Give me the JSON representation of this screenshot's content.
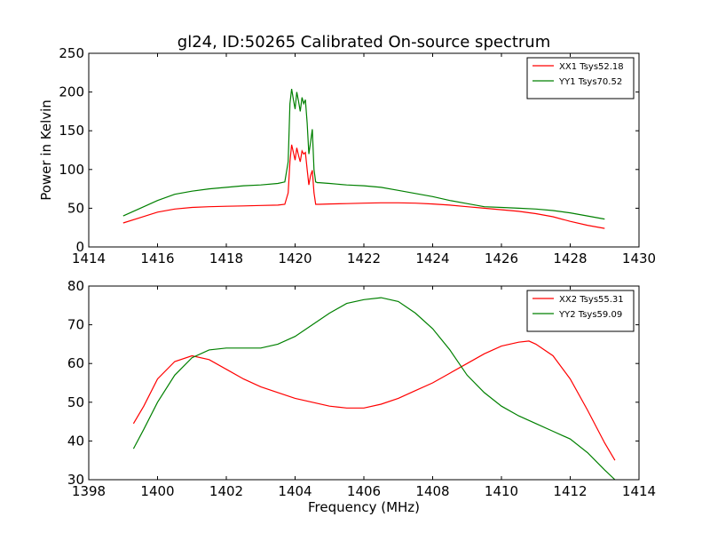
{
  "chart_data": [
    {
      "type": "line",
      "title": "gl24, ID:50265 Calibrated On-source spectrum",
      "xlabel": "",
      "ylabel": "Power in Kelvin",
      "xlim": [
        1414,
        1430
      ],
      "ylim": [
        0,
        250
      ],
      "xticks": [
        "1414",
        "1416",
        "1418",
        "1420",
        "1422",
        "1424",
        "1426",
        "1428",
        "1430"
      ],
      "yticks": [
        "0",
        "50",
        "100",
        "150",
        "200",
        "250"
      ],
      "legend_position": "top-right",
      "grid": false,
      "series": [
        {
          "name": "XX1 Tsys52.18",
          "color": "#ff0000",
          "x": [
            1415.0,
            1415.5,
            1416.0,
            1416.5,
            1417.0,
            1417.5,
            1418.0,
            1418.5,
            1419.0,
            1419.5,
            1419.7,
            1419.8,
            1419.85,
            1419.9,
            1419.95,
            1420.0,
            1420.05,
            1420.1,
            1420.15,
            1420.2,
            1420.25,
            1420.3,
            1420.35,
            1420.4,
            1420.45,
            1420.5,
            1420.55,
            1420.6,
            1420.65,
            1420.7,
            1421.0,
            1421.5,
            1422.0,
            1422.5,
            1423.0,
            1423.5,
            1424.0,
            1424.5,
            1425.0,
            1425.5,
            1426.0,
            1426.5,
            1427.0,
            1427.5,
            1428.0,
            1428.5,
            1429.0
          ],
          "y": [
            31,
            38,
            45,
            49,
            51,
            52,
            52.5,
            53,
            53.5,
            54,
            55,
            70,
            110,
            132,
            122,
            112,
            128,
            118,
            110,
            124,
            120,
            122,
            100,
            80,
            92,
            99,
            70,
            55,
            55,
            55,
            55.5,
            56,
            56.5,
            57,
            57,
            56.5,
            55.5,
            54,
            52,
            50,
            48,
            46,
            43,
            39,
            33,
            28,
            24
          ]
        },
        {
          "name": "YY1 Tsys70.52",
          "color": "#008000",
          "x": [
            1415.0,
            1415.5,
            1416.0,
            1416.5,
            1417.0,
            1417.5,
            1418.0,
            1418.5,
            1419.0,
            1419.5,
            1419.7,
            1419.8,
            1419.85,
            1419.9,
            1419.95,
            1420.0,
            1420.05,
            1420.1,
            1420.15,
            1420.2,
            1420.25,
            1420.3,
            1420.35,
            1420.4,
            1420.45,
            1420.5,
            1420.55,
            1420.6,
            1420.65,
            1420.7,
            1421.0,
            1421.5,
            1422.0,
            1422.5,
            1423.0,
            1423.5,
            1424.0,
            1424.5,
            1425.0,
            1425.5,
            1426.0,
            1426.5,
            1427.0,
            1427.5,
            1428.0,
            1428.5,
            1429.0
          ],
          "y": [
            40,
            50,
            60,
            68,
            72,
            75,
            77,
            79,
            80,
            82,
            84,
            110,
            185,
            204,
            190,
            178,
            200,
            188,
            175,
            193,
            185,
            190,
            160,
            120,
            135,
            152,
            100,
            84,
            83,
            83,
            82,
            80,
            79,
            77,
            73,
            69,
            65,
            60,
            56,
            52,
            51,
            50,
            49,
            47,
            44,
            40,
            36
          ]
        }
      ]
    },
    {
      "type": "line",
      "title": "",
      "xlabel": "Frequency (MHz)",
      "ylabel": "",
      "xlim": [
        1398,
        1414
      ],
      "ylim": [
        30,
        80
      ],
      "xticks": [
        "1398",
        "1400",
        "1402",
        "1404",
        "1406",
        "1408",
        "1410",
        "1412",
        "1414"
      ],
      "yticks": [
        "30",
        "40",
        "50",
        "60",
        "70",
        "80"
      ],
      "legend_position": "top-right",
      "grid": false,
      "series": [
        {
          "name": "XX2 Tsys55.31",
          "color": "#ff0000",
          "x": [
            1399.3,
            1399.6,
            1400.0,
            1400.5,
            1401.0,
            1401.5,
            1402.0,
            1402.5,
            1403.0,
            1403.5,
            1404.0,
            1404.5,
            1405.0,
            1405.5,
            1406.0,
            1406.5,
            1407.0,
            1407.5,
            1408.0,
            1408.5,
            1409.0,
            1409.5,
            1410.0,
            1410.5,
            1410.8,
            1411.0,
            1411.5,
            1412.0,
            1412.5,
            1413.0,
            1413.3
          ],
          "y": [
            44.5,
            49,
            56,
            60.5,
            62,
            61,
            58.5,
            56,
            54,
            52.5,
            51,
            50,
            49,
            48.5,
            48.5,
            49.5,
            51,
            53,
            55,
            57.5,
            60,
            62.5,
            64.5,
            65.5,
            65.8,
            65,
            62,
            56,
            48,
            39.5,
            35
          ]
        },
        {
          "name": "YY2 Tsys59.09",
          "color": "#008000",
          "x": [
            1399.3,
            1399.6,
            1400.0,
            1400.5,
            1401.0,
            1401.5,
            1402.0,
            1402.5,
            1403.0,
            1403.5,
            1404.0,
            1404.5,
            1405.0,
            1405.5,
            1406.0,
            1406.5,
            1407.0,
            1407.5,
            1408.0,
            1408.5,
            1409.0,
            1409.5,
            1410.0,
            1410.5,
            1411.0,
            1411.5,
            1412.0,
            1412.5,
            1413.0,
            1413.3
          ],
          "y": [
            38,
            43,
            50,
            57,
            61.5,
            63.5,
            64,
            64,
            64,
            65,
            67,
            70,
            73,
            75.5,
            76.5,
            77,
            76,
            73,
            69,
            63.5,
            57,
            52.5,
            49,
            46.5,
            44.5,
            42.5,
            40.5,
            37,
            32.5,
            29.5
          ]
        }
      ]
    }
  ]
}
